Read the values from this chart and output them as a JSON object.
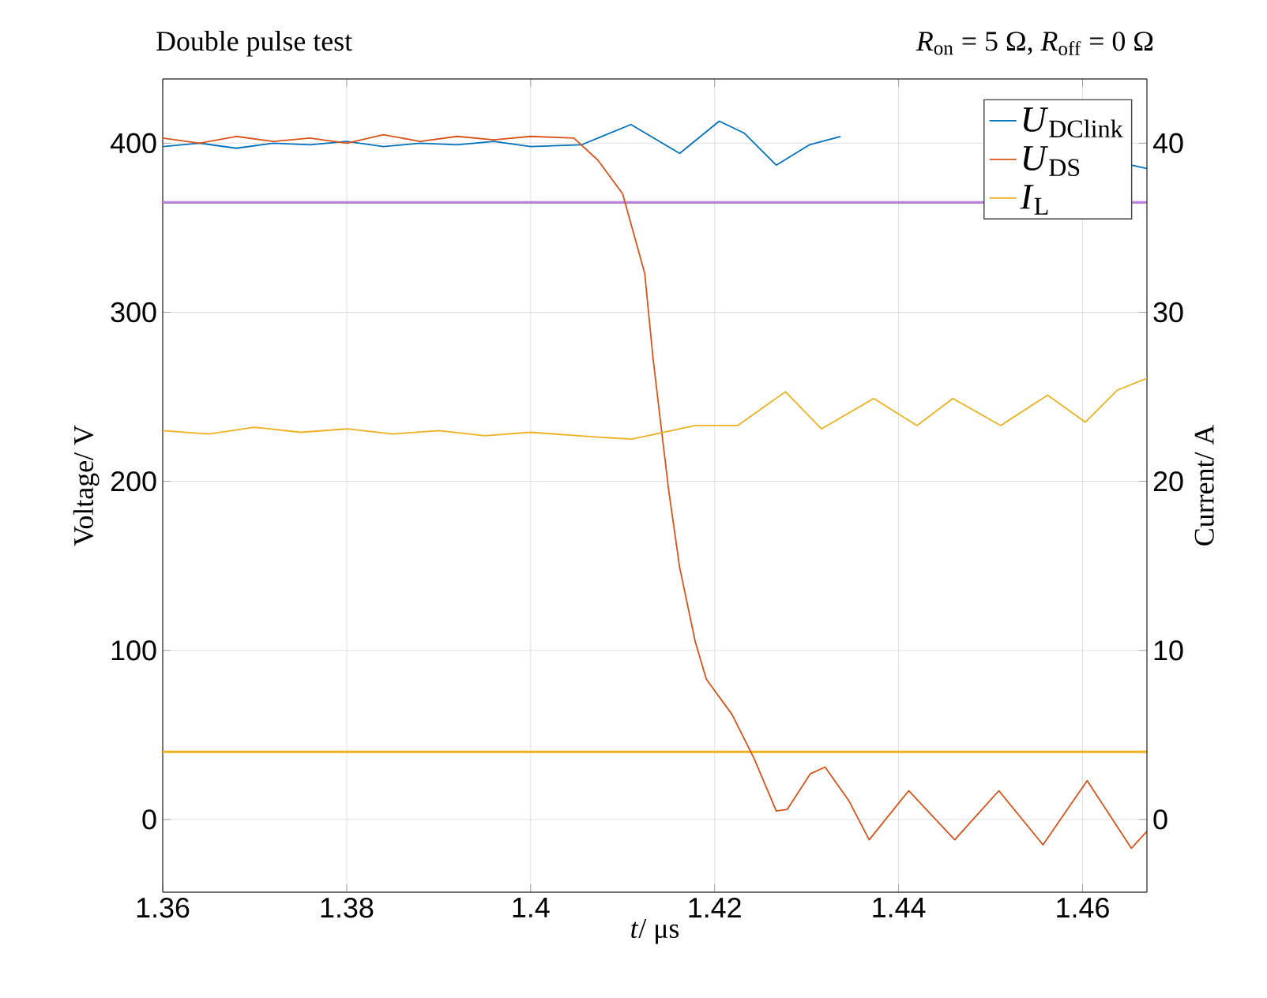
{
  "chart_data": {
    "type": "line",
    "title": "Double pulse test",
    "subtitle": "*R*$_{on}$ = 5 Ω, *R*$_{off}$ = 0 Ω",
    "xlabel": "*t*/ μs",
    "ylabel": "Voltage/ V",
    "y2label": "Current/ A",
    "xlim": [
      1.36,
      1.467
    ],
    "xticks": [
      {
        "value": 1.36,
        "label": "1.36"
      },
      {
        "value": 1.38,
        "label": "1.38"
      },
      {
        "value": 1.4,
        "label": "1.4"
      },
      {
        "value": 1.42,
        "label": "1.42"
      },
      {
        "value": 1.44,
        "label": "1.44"
      },
      {
        "value": 1.46,
        "label": "1.46"
      }
    ],
    "ylim": [
      -43,
      438
    ],
    "yticks": [
      0,
      100,
      200,
      300,
      400
    ],
    "y2lim": [
      -4.3,
      43.8
    ],
    "y2ticks": [
      0,
      10,
      20,
      30,
      40
    ],
    "grid": true,
    "legend": "top right",
    "marker": "none",
    "line_style": "solid",
    "series": [
      {
        "name": "*U*$_{DClink}$",
        "color": "#0072bd",
        "x": [
          1.36,
          1.364,
          1.368,
          1.372,
          1.376,
          1.38,
          1.384,
          1.388,
          1.392,
          1.396,
          1.4,
          1.4055,
          1.4109,
          1.4162,
          1.4205,
          1.4232,
          1.4267,
          1.4303,
          1.4337,
          1.44,
          1.4653,
          1.467
        ],
        "values": [
          398,
          400,
          397,
          400,
          399,
          401,
          398,
          400,
          399,
          401,
          398,
          399,
          411,
          394,
          413,
          406,
          387,
          399,
          404,
          null,
          387,
          385
        ]
      },
      {
        "name": "*U*$_{DS}$",
        "color": "#d95319",
        "x": [
          1.36,
          1.364,
          1.368,
          1.372,
          1.376,
          1.38,
          1.384,
          1.388,
          1.392,
          1.396,
          1.4,
          1.4047,
          1.4073,
          1.41,
          1.4124,
          1.4133,
          1.4141,
          1.415,
          1.4162,
          1.4179,
          1.4191,
          1.4219,
          1.4243,
          1.4267,
          1.4279,
          1.4304,
          1.432,
          1.4346,
          1.4368,
          1.4411,
          1.4461,
          1.4509,
          1.4557,
          1.4605,
          1.4653,
          1.467
        ],
        "values": [
          403,
          400,
          404,
          401,
          403,
          400,
          405,
          401,
          404,
          402,
          404,
          403,
          390,
          370,
          323,
          273,
          236,
          195,
          149,
          105,
          83,
          62,
          36,
          5,
          6,
          27,
          31,
          11,
          -12,
          17,
          -12,
          17,
          -15,
          23,
          -17,
          -7
        ]
      },
      {
        "name": "*I*$_{L}$",
        "color": "#edb120",
        "axis": "y2",
        "x": [
          1.36,
          1.365,
          1.37,
          1.375,
          1.38,
          1.385,
          1.39,
          1.395,
          1.4,
          1.4076,
          1.411,
          1.4179,
          1.4225,
          1.4277,
          1.4316,
          1.4373,
          1.442,
          1.4459,
          1.4511,
          1.4562,
          1.4603,
          1.4638,
          1.467
        ],
        "values": [
          23.0,
          22.8,
          23.2,
          22.9,
          23.1,
          22.8,
          23.0,
          22.7,
          22.9,
          22.6,
          22.5,
          23.3,
          23.3,
          25.3,
          23.1,
          24.9,
          23.3,
          24.9,
          23.3,
          25.1,
          23.5,
          25.4,
          26.1
        ]
      }
    ],
    "ref_lines": [
      {
        "axis": "y",
        "value": 365,
        "color": "#b882d6"
      },
      {
        "axis": "y",
        "value": 40,
        "color": "#f0b020"
      }
    ]
  }
}
